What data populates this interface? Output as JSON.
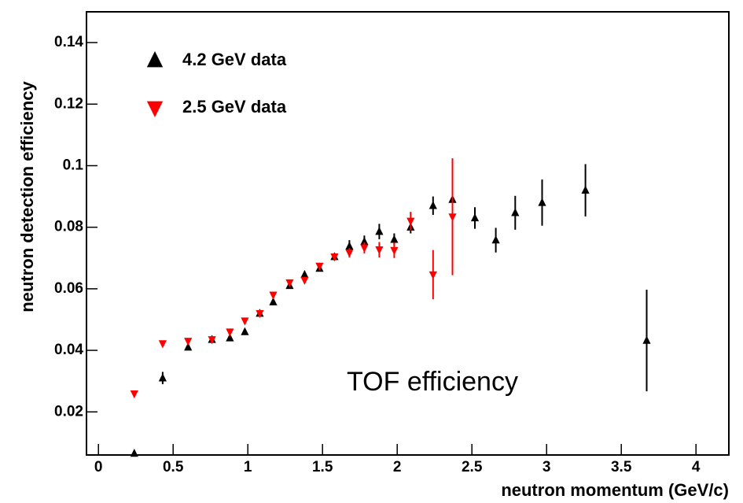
{
  "chart_data": {
    "type": "scatter",
    "x_label": "neutron momentum (GeV/c)",
    "y_label": "neutron detection efficiency",
    "annotation": "TOF efficiency",
    "xlim": [
      -0.08,
      4.22
    ],
    "ylim": [
      0.006,
      0.15
    ],
    "xticks": [
      0,
      0.5,
      1,
      1.5,
      2,
      2.5,
      3,
      3.5,
      4
    ],
    "yticks": [
      0.02,
      0.04,
      0.06,
      0.08,
      0.1,
      0.12,
      0.14
    ],
    "legend": "upper left",
    "series": [
      {
        "name": "4.2 GeV data",
        "color": "#000000",
        "marker": "triangle-up",
        "x": [
          0.24,
          0.43,
          0.6,
          0.76,
          0.88,
          0.98,
          1.08,
          1.17,
          1.28,
          1.38,
          1.48,
          1.58,
          1.68,
          1.78,
          1.88,
          1.98,
          2.09,
          2.24,
          2.37,
          2.52,
          2.66,
          2.79,
          2.97,
          3.26,
          3.67
        ],
        "values": [
          0.0065,
          0.031,
          0.041,
          0.0435,
          0.044,
          0.046,
          0.052,
          0.0557,
          0.061,
          0.0646,
          0.0666,
          0.0704,
          0.0738,
          0.0753,
          0.0786,
          0.076,
          0.08,
          0.087,
          0.089,
          0.083,
          0.0758,
          0.0847,
          0.088,
          0.092,
          0.0432
        ],
        "errors": [
          0.001,
          0.002,
          0.001,
          0.001,
          0.001,
          0.001,
          0.001,
          0.001,
          0.001,
          0.001,
          0.001,
          0.0012,
          0.002,
          0.002,
          0.0025,
          0.002,
          0.002,
          0.003,
          0.003,
          0.0035,
          0.004,
          0.0055,
          0.0075,
          0.0085,
          0.0165
        ]
      },
      {
        "name": "2.5 GeV data",
        "color": "#ff0000",
        "marker": "triangle-down",
        "x": [
          0.24,
          0.43,
          0.6,
          0.76,
          0.88,
          0.98,
          1.08,
          1.17,
          1.28,
          1.38,
          1.48,
          1.58,
          1.68,
          1.78,
          1.88,
          1.98,
          2.09,
          2.24,
          2.37
        ],
        "values": [
          0.0259,
          0.0422,
          0.043,
          0.0435,
          0.046,
          0.0496,
          0.052,
          0.058,
          0.062,
          0.0628,
          0.0674,
          0.0704,
          0.0717,
          0.0733,
          0.0727,
          0.0725,
          0.082,
          0.0646,
          0.0834
        ],
        "errors": [
          0.0005,
          0.0005,
          0.0005,
          0.0005,
          0.0007,
          0.0007,
          0.0008,
          0.0008,
          0.001,
          0.001,
          0.001,
          0.0012,
          0.0015,
          0.0018,
          0.0025,
          0.0025,
          0.003,
          0.008,
          0.019
        ]
      }
    ]
  }
}
